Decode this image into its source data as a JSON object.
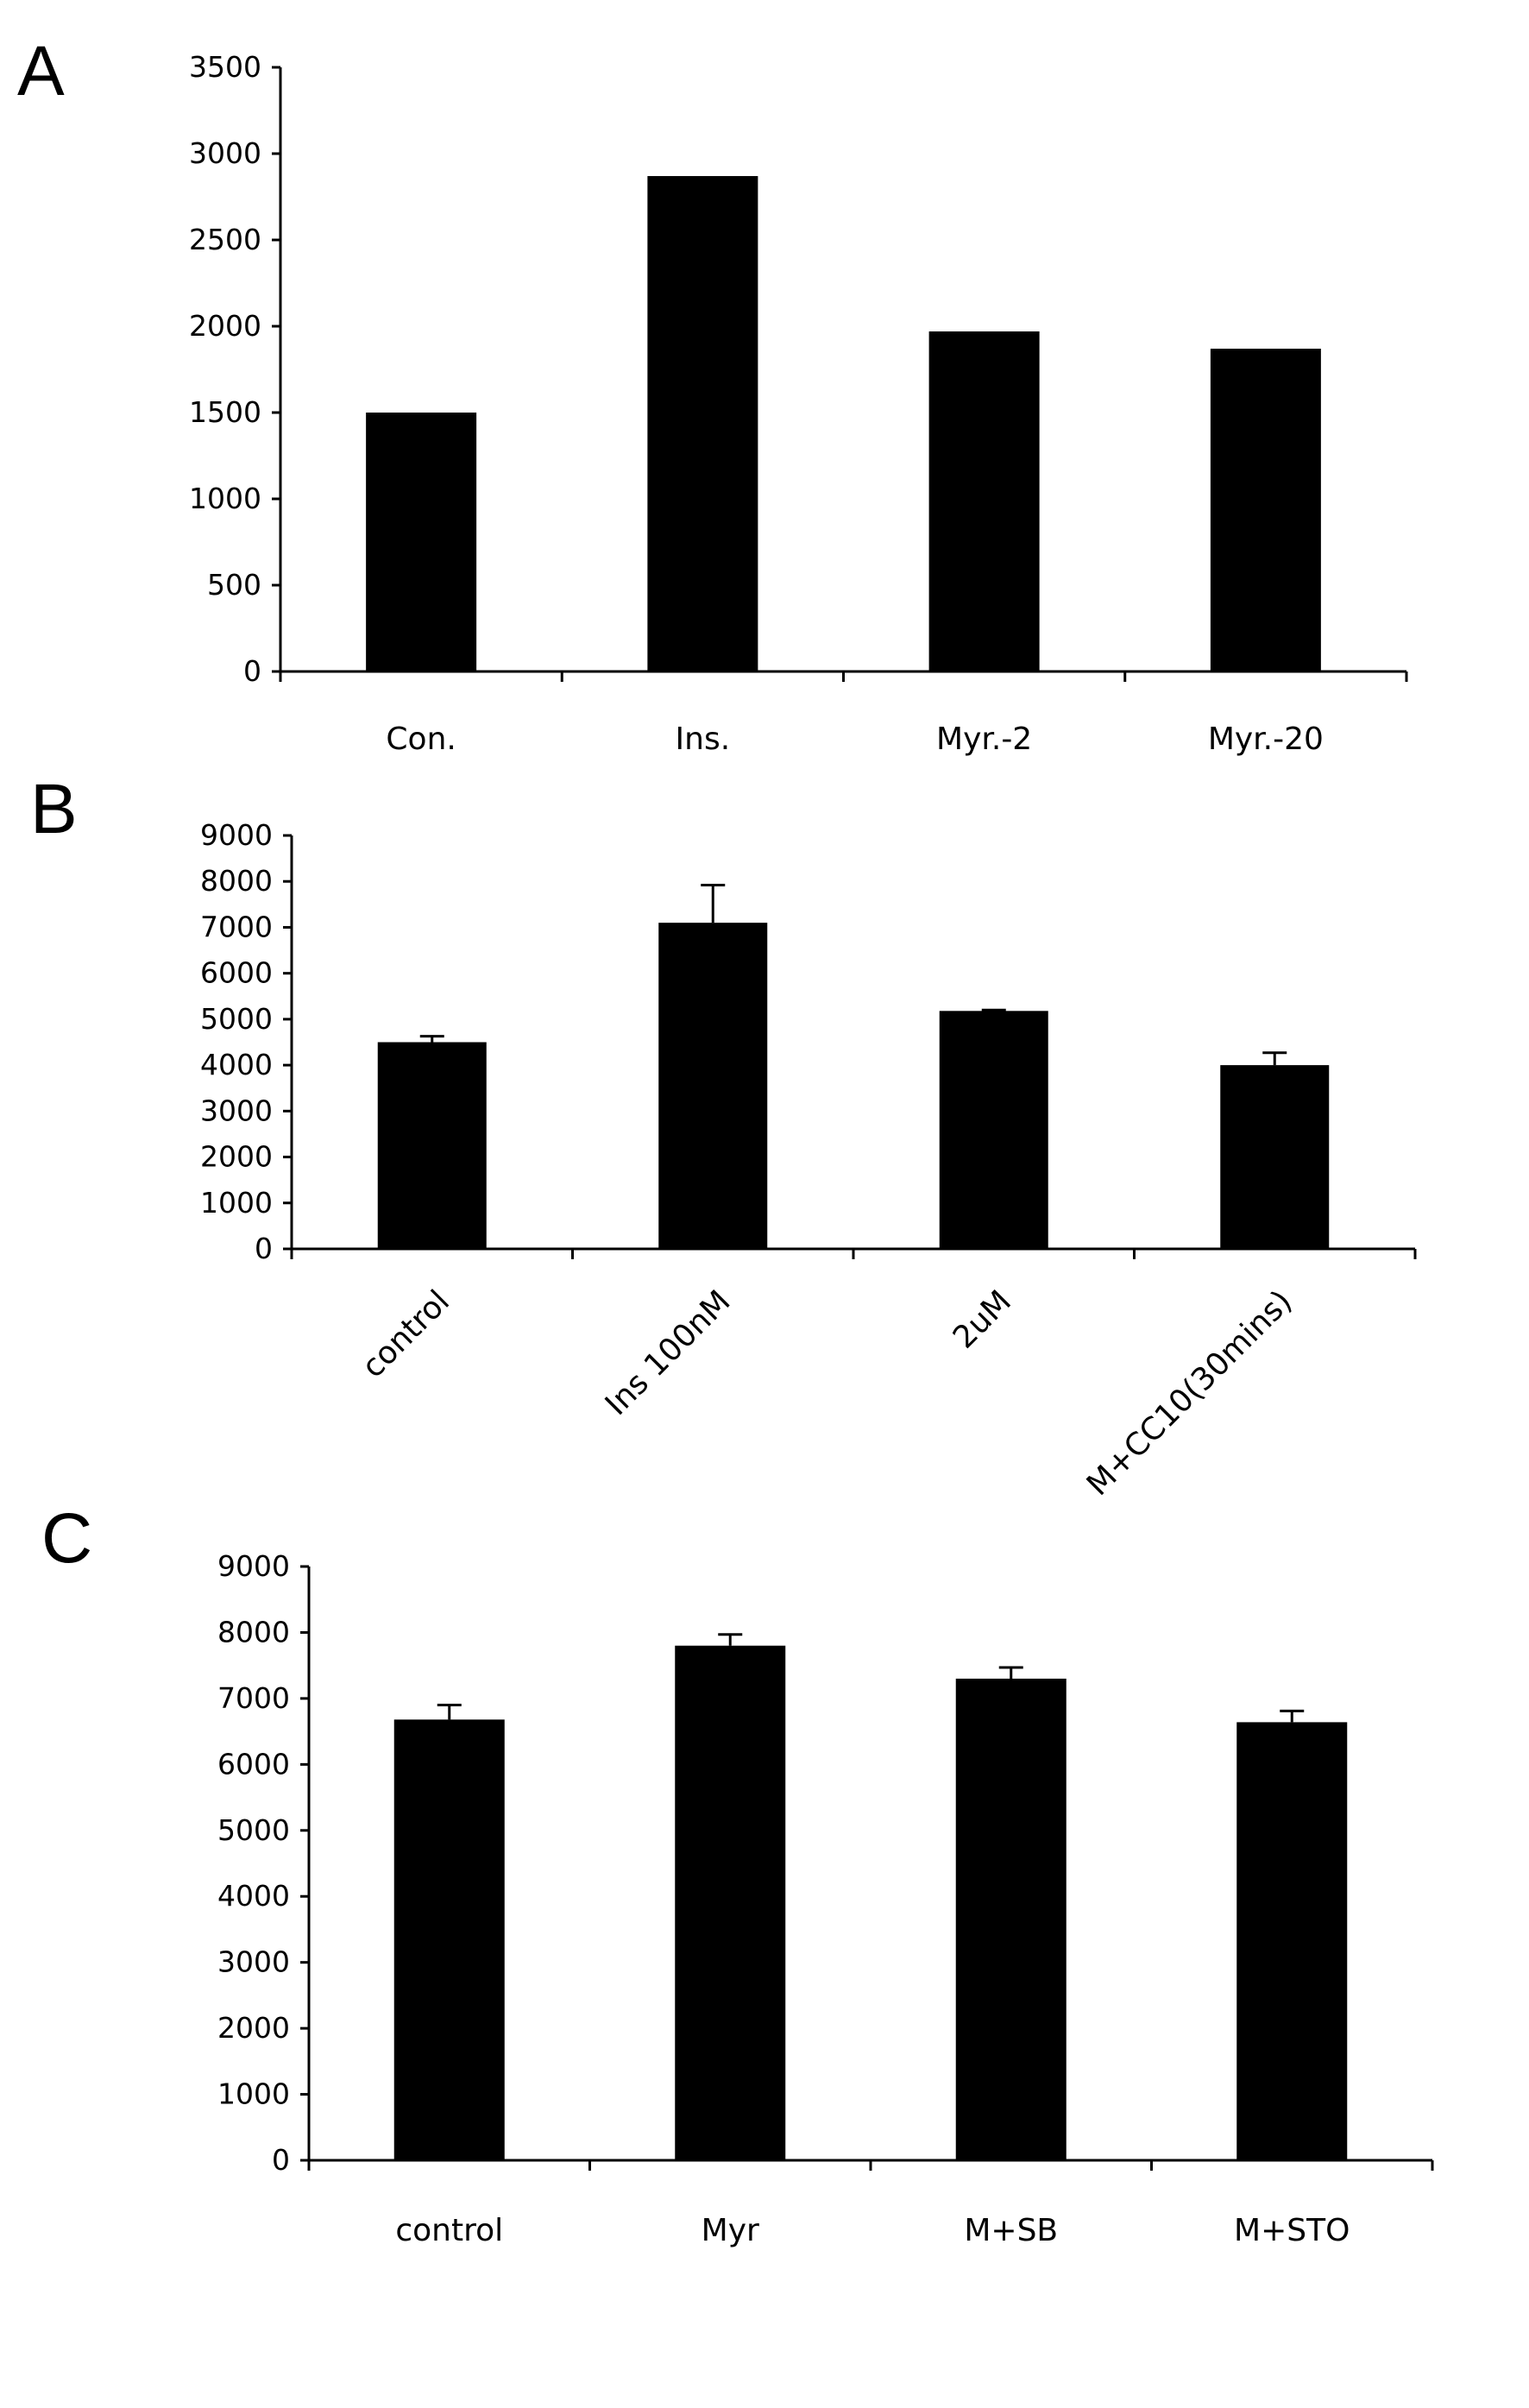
{
  "chart_data": [
    {
      "panel": "A",
      "type": "bar",
      "categories": [
        "Con.",
        "Ins.",
        "Myr.-2",
        "Myr.-20"
      ],
      "values": [
        1500,
        2870,
        1970,
        1870
      ],
      "errors": null,
      "ylim": [
        0,
        3500
      ],
      "yticks": [
        0,
        500,
        1000,
        1500,
        2000,
        2500,
        3000,
        3500
      ],
      "ytick_labels": [
        "0",
        "500",
        "1000",
        "1500",
        "2000",
        "2500",
        "3000",
        "3500"
      ],
      "xlabel_rotation": 0,
      "grid": false,
      "legend": "none",
      "bar_color": "#000000"
    },
    {
      "panel": "B",
      "type": "bar",
      "categories": [
        "control",
        "Ins 100nM",
        "2uM",
        "M+CC10(30mins)"
      ],
      "values": [
        4500,
        7100,
        5180,
        4000
      ],
      "errors": [
        130,
        820,
        20,
        270
      ],
      "ylim": [
        0,
        9000
      ],
      "yticks": [
        0,
        1000,
        2000,
        3000,
        4000,
        5000,
        6000,
        7000,
        8000,
        9000
      ],
      "ytick_labels": [
        "0",
        "1000",
        "2000",
        "3000",
        "4000",
        "5000",
        "6000",
        "7000",
        "8000",
        "9000"
      ],
      "xlabel_rotation": -45,
      "grid": false,
      "legend": "none",
      "bar_color": "#000000"
    },
    {
      "panel": "C",
      "type": "bar",
      "categories": [
        "control",
        "Myr",
        "M+SB",
        "M+STO"
      ],
      "values": [
        6680,
        7800,
        7300,
        6640
      ],
      "errors": [
        220,
        170,
        170,
        170
      ],
      "ylim": [
        0,
        9000
      ],
      "yticks": [
        0,
        1000,
        2000,
        3000,
        4000,
        5000,
        6000,
        7000,
        8000,
        9000
      ],
      "ytick_labels": [
        "0",
        "1000",
        "2000",
        "3000",
        "4000",
        "5000",
        "6000",
        "7000",
        "8000",
        "9000"
      ],
      "xlabel_rotation": 0,
      "grid": false,
      "legend": "none",
      "bar_color": "#000000"
    }
  ]
}
